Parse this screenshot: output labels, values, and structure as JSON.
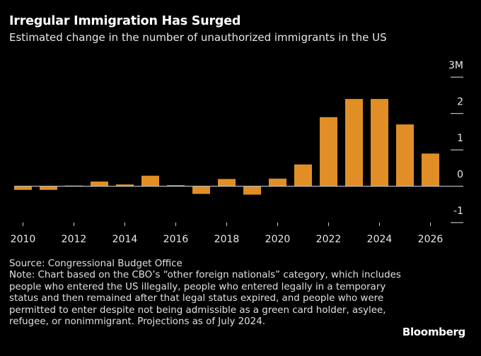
{
  "title": "Irregular Immigration Has Surged",
  "subtitle": "Estimated change in the number of unauthorized immigrants in the US",
  "source": "Source: Congressional Budget Office",
  "note": "Note: Chart based on the CBO’s “other foreign nationals” category, which includes people who entered the US illegally, people who entered legally in a temporary status and then remained after that legal status expired, and people who were permitted to enter despite not being admissible as a green card holder, asylee, refugee, or nonimmigrant. Projections as of July 2024.",
  "brand": "Bloomberg",
  "colors": {
    "bar": "#E08E25",
    "background": "#000000",
    "axis": "#cccccc"
  },
  "chart_data": {
    "type": "bar",
    "categories": [
      "2010",
      "2011",
      "2012",
      "2013",
      "2014",
      "2015",
      "2016",
      "2017",
      "2018",
      "2019",
      "2020",
      "2021",
      "2022",
      "2023",
      "2024",
      "2025",
      "2026"
    ],
    "values": [
      -0.1,
      -0.1,
      0.02,
      0.13,
      0.05,
      0.29,
      0.03,
      -0.21,
      0.2,
      -0.23,
      0.21,
      0.6,
      1.9,
      2.4,
      2.4,
      1.7,
      0.9
    ],
    "unit": "M",
    "ylim": [
      -1,
      3
    ],
    "yticks": [
      -1,
      0,
      1,
      2,
      3
    ],
    "ytick_labels": [
      "-1",
      "0",
      "1",
      "2",
      "3M"
    ],
    "xtick_labels": [
      "2010",
      "2012",
      "2014",
      "2016",
      "2018",
      "2020",
      "2022",
      "2024",
      "2026"
    ],
    "y_axis_position": "right",
    "grid": false,
    "legend": "none"
  }
}
